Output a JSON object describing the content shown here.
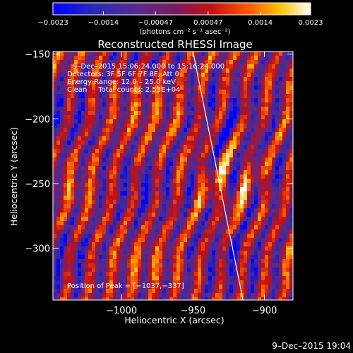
{
  "chart_data": {
    "type": "heatmap",
    "title": "Reconstructed RHESSI Image",
    "xlabel": "Heliocentric X (arcsec)",
    "ylabel": "Heliocentric Y (arcsec)",
    "xlim": [
      -1048,
      -880
    ],
    "ylim": [
      -340,
      -148
    ],
    "xticks": [
      -1000,
      -950,
      -900
    ],
    "xtick_labels": [
      "−1000",
      "−950",
      "−900"
    ],
    "yticks": [
      -150,
      -200,
      -250,
      -300
    ],
    "ytick_labels": [
      "−150",
      "−200",
      "−250",
      "−300"
    ],
    "colorbar": {
      "min": -0.0023,
      "max": 0.0023,
      "colormap": "blue-purple-red-yellow-white",
      "tick_values": [
        -0.0023,
        -0.0014,
        -0.00047,
        0.00047,
        0.0014,
        0.0023
      ],
      "tick_labels": [
        "−0.0023",
        "−0.0014",
        "−0.00047",
        "0.00047",
        "0.0014",
        "0.0023"
      ],
      "unit_label": "(photons cm⁻² s⁻¹ asec⁻²)"
    },
    "annotations": {
      "time_range": "9–Dec–2015 15:06:24.000 to 15:16:24.000",
      "detectors": "Detectors: 3F 5F 6F 7F 8F, Att 0",
      "energy": "Energy Range: 12.0 – 25.0 keV",
      "method": "Clean     Total counts: 2.53E+04",
      "peak": "Position of Peak = [−1037,−337]"
    },
    "limb_line": {
      "x": [
        -950,
        -915
      ],
      "y": [
        -148,
        -340
      ]
    },
    "footer": "9–Dec–2015 19:04",
    "colors": {
      "background": "#000000",
      "colormap_stops": [
        "#0000ff",
        "#3a2aa0",
        "#5a2a8c",
        "#8a1a50",
        "#c81010",
        "#ff5a00",
        "#ffc000",
        "#ffffff"
      ]
    }
  }
}
